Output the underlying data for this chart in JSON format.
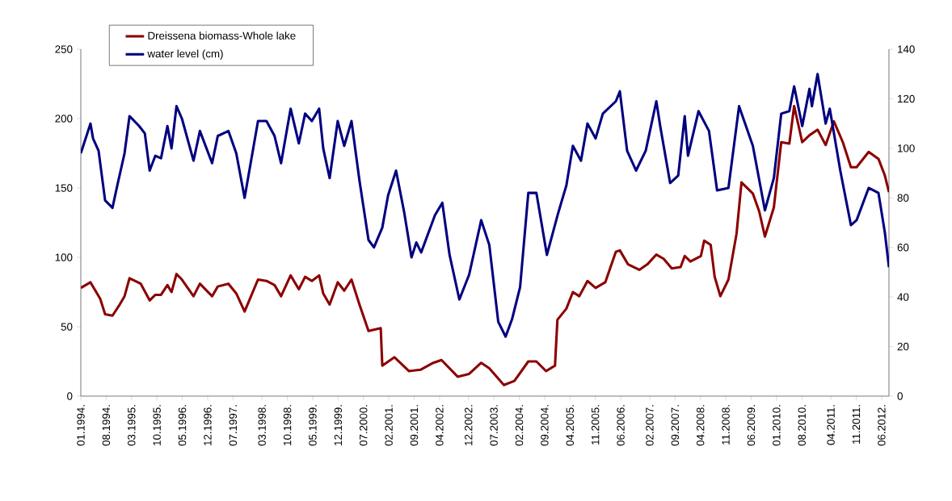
{
  "chart_data": {
    "type": "line",
    "xlim": [
      "1994-01-01",
      "2012-08-02"
    ],
    "xticks": [
      {
        "value": "1994-01",
        "label": "01.1994."
      },
      {
        "value": "1994-08",
        "label": "08.1994."
      },
      {
        "value": "1995-03",
        "label": "03.1995."
      },
      {
        "value": "1995-10",
        "label": "10.1995."
      },
      {
        "value": "1996-05",
        "label": "05.1996."
      },
      {
        "value": "1996-12",
        "label": "12.1996."
      },
      {
        "value": "1997-07",
        "label": "07.1997."
      },
      {
        "value": "1998-03",
        "label": "03.1998."
      },
      {
        "value": "1998-10",
        "label": "10.1998."
      },
      {
        "value": "1999-05",
        "label": "05.1999."
      },
      {
        "value": "1999-12",
        "label": "12.1999."
      },
      {
        "value": "2000-07",
        "label": "07.2000."
      },
      {
        "value": "2001-02",
        "label": "02.2001."
      },
      {
        "value": "2001-09",
        "label": "09.2001."
      },
      {
        "value": "2002-04",
        "label": "04.2002."
      },
      {
        "value": "2002-12",
        "label": "12.2002."
      },
      {
        "value": "2003-07",
        "label": "07.2003."
      },
      {
        "value": "2004-02",
        "label": "02.2004."
      },
      {
        "value": "2004-09",
        "label": "09.2004."
      },
      {
        "value": "2005-04",
        "label": "04.2005."
      },
      {
        "value": "2005-11",
        "label": "11.2005."
      },
      {
        "value": "2006-06",
        "label": "06.2006."
      },
      {
        "value": "2007-02",
        "label": "02.2007."
      },
      {
        "value": "2007-09",
        "label": "09.2007."
      },
      {
        "value": "2008-04",
        "label": "04.2008."
      },
      {
        "value": "2008-11",
        "label": "11.2008."
      },
      {
        "value": "2009-06",
        "label": "06.2009."
      },
      {
        "value": "2010-01",
        "label": "01.2010."
      },
      {
        "value": "2010-08",
        "label": "08.2010."
      },
      {
        "value": "2011-04",
        "label": "04.2011."
      },
      {
        "value": "2011-11",
        "label": "11.2011."
      },
      {
        "value": "2012-06",
        "label": "06.2012."
      }
    ],
    "ylim": [
      0,
      250
    ],
    "yticks": [
      0,
      50,
      100,
      150,
      200,
      250
    ],
    "y2lim": [
      0,
      140
    ],
    "y2ticks": [
      0,
      20,
      40,
      60,
      80,
      100,
      120,
      140
    ],
    "legend": "top left",
    "marker": "none",
    "line_style": "solid",
    "series": [
      {
        "name": "Dreissena biomass-Whole lake",
        "color": "#8b0000",
        "x": [
          "1994-01-01",
          "1994-03-21",
          "1994-06-12",
          "1994-07-22",
          "1994-09-23",
          "1994-11-16",
          "1995-01-03",
          "1995-02-14",
          "1995-05-17",
          "1995-08-01",
          "1995-09-18",
          "1995-11-05",
          "1995-12-28",
          "1996-02-02",
          "1996-03-13",
          "1996-04-28",
          "1996-08-04",
          "1996-09-27",
          "1997-01-08",
          "1997-02-25",
          "1997-05-23",
          "1997-07-28",
          "1997-10-07",
          "1998-01-28",
          "1998-04-08",
          "1998-06-15",
          "1998-08-09",
          "1998-10-28",
          "1999-01-06",
          "1999-02-28",
          "1999-04-24",
          "1999-06-24",
          "1999-07-28",
          "1999-09-21",
          "1999-11-28",
          "2000-01-22",
          "2000-03-22",
          "2000-05-28",
          "2000-08-13",
          "2000-11-24",
          "2000-12-07",
          "2001-03-18",
          "2001-07-19",
          "2001-10-23",
          "2002-02-10",
          "2002-04-17",
          "2002-09-01",
          "2002-12-06",
          "2003-03-16",
          "2003-05-23",
          "2003-09-24",
          "2003-12-21",
          "2004-04-16",
          "2004-06-23",
          "2004-09-13",
          "2004-11-27",
          "2004-12-17",
          "2005-03-01",
          "2005-04-25",
          "2005-06-18",
          "2005-08-26",
          "2005-11-03",
          "2006-01-23",
          "2006-04-21",
          "2006-05-24",
          "2006-08-01",
          "2006-11-05",
          "2007-01-12",
          "2007-03-26",
          "2007-05-26",
          "2007-08-04",
          "2007-10-17",
          "2007-11-21",
          "2008-01-08",
          "2008-04-05",
          "2008-05-02",
          "2008-06-26",
          "2008-07-29",
          "2008-09-16",
          "2008-11-23",
          "2009-01-30",
          "2009-03-11",
          "2009-06-15",
          "2009-08-08",
          "2009-09-25",
          "2009-12-09",
          "2010-02-10",
          "2010-04-17",
          "2010-05-27",
          "2010-08-04",
          "2010-10-04",
          "2010-12-11",
          "2011-02-18",
          "2011-04-26",
          "2011-07-10",
          "2011-09-17",
          "2011-11-04",
          "2012-02-14",
          "2012-05-05",
          "2012-06-28",
          "2012-08-02"
        ],
        "values": [
          78,
          82,
          70,
          59,
          58,
          65,
          72,
          85,
          81,
          69,
          73,
          73,
          80,
          75,
          88,
          84,
          72,
          81,
          72,
          79,
          81,
          74,
          61,
          84,
          83,
          80,
          72,
          87,
          77,
          86,
          83,
          87,
          74,
          66,
          82,
          76,
          84,
          66,
          47,
          49,
          22,
          28,
          18,
          19,
          24,
          26,
          14,
          16,
          24,
          20,
          8,
          11,
          25,
          25,
          18,
          22,
          55,
          63,
          75,
          72,
          83,
          78,
          82,
          104,
          105,
          95,
          91,
          95,
          102,
          99,
          92,
          93,
          101,
          97,
          101,
          112,
          109,
          86,
          72,
          84,
          117,
          154,
          146,
          133,
          115,
          136,
          183,
          182,
          209,
          183,
          188,
          192,
          181,
          198,
          183,
          165,
          165,
          176,
          171,
          159,
          147
        ]
      },
      {
        "name": "water level (cm)",
        "color": "#000080",
        "axis": "y2",
        "x": [
          "1994-01-01",
          "1994-03-21",
          "1994-04-12",
          "1994-05-28",
          "1994-07-22",
          "1994-09-23",
          "1994-11-03",
          "1995-01-03",
          "1995-02-14",
          "1995-05-04",
          "1995-06-21",
          "1995-08-01",
          "1995-09-18",
          "1995-11-05",
          "1995-12-28",
          "1996-02-02",
          "1996-03-13",
          "1996-04-28",
          "1996-08-04",
          "1996-09-27",
          "1997-01-08",
          "1997-02-25",
          "1997-05-23",
          "1997-07-28",
          "1997-10-07",
          "1998-01-28",
          "1998-04-08",
          "1998-06-15",
          "1998-08-09",
          "1998-10-28",
          "1999-01-06",
          "1999-02-28",
          "1999-04-24",
          "1999-06-24",
          "1999-07-28",
          "1999-09-21",
          "1999-11-28",
          "2000-01-22",
          "2000-03-22",
          "2000-05-28",
          "2000-08-13",
          "2000-09-28",
          "2000-12-07",
          "2001-01-25",
          "2001-04-01",
          "2001-06-09",
          "2001-08-09",
          "2001-09-19",
          "2001-10-29",
          "2002-02-23",
          "2002-04-24",
          "2002-06-24",
          "2002-09-15",
          "2002-12-06",
          "2003-03-16",
          "2003-05-23",
          "2003-08-07",
          "2003-10-08",
          "2003-12-01",
          "2004-02-08",
          "2004-04-16",
          "2004-06-23",
          "2004-09-20",
          "2004-12-24",
          "2005-03-01",
          "2005-04-25",
          "2005-07-02",
          "2005-08-26",
          "2005-11-03",
          "2006-01-03",
          "2006-04-21",
          "2006-05-24",
          "2006-07-24",
          "2006-10-08",
          "2006-12-28",
          "2007-03-26",
          "2007-04-28",
          "2007-07-20",
          "2007-09-27",
          "2007-11-21",
          "2007-12-18",
          "2008-03-15",
          "2008-06-12",
          "2008-08-19",
          "2008-11-23",
          "2009-02-21",
          "2009-06-15",
          "2009-09-25",
          "2009-12-09",
          "2010-02-10",
          "2010-04-17",
          "2010-05-27",
          "2010-08-04",
          "2010-10-04",
          "2010-10-24",
          "2010-12-11",
          "2011-02-18",
          "2011-03-22",
          "2011-06-19",
          "2011-09-17",
          "2011-11-04",
          "2012-02-14",
          "2012-05-05",
          "2012-06-28",
          "2012-08-02"
        ],
        "values": [
          98,
          110,
          104,
          99,
          79,
          76,
          85,
          98,
          113,
          109,
          106,
          91,
          97,
          96,
          109,
          100,
          117,
          112,
          95,
          107,
          94,
          105,
          107,
          98,
          80,
          111,
          111,
          105,
          94,
          116,
          102,
          114,
          111,
          116,
          100,
          88,
          111,
          101,
          111,
          87,
          63,
          60,
          68,
          81,
          91,
          74,
          56,
          62,
          58,
          73,
          78,
          57,
          39,
          49,
          71,
          61,
          30,
          24,
          31,
          44,
          82,
          82,
          57,
          74,
          85,
          101,
          95,
          110,
          104,
          114,
          119,
          123,
          99,
          91,
          99,
          119,
          109,
          86,
          89,
          113,
          97,
          115,
          107,
          83,
          84,
          117,
          101,
          75,
          88,
          114,
          115,
          125,
          109,
          124,
          117,
          130,
          110,
          116,
          91,
          69,
          71,
          84,
          82,
          66,
          52
        ]
      }
    ]
  }
}
